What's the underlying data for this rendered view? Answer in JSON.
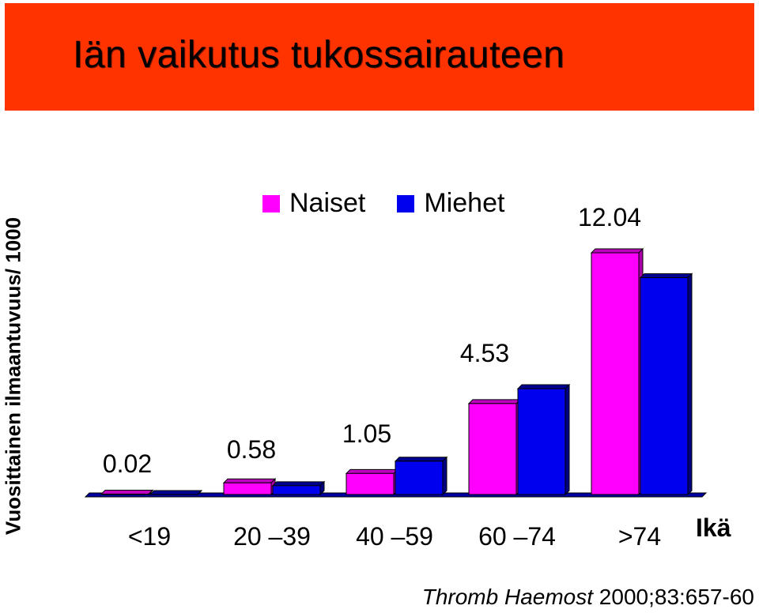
{
  "slide": {
    "title": "Iän vaikutus tukossairauteen",
    "citation_journal": "Thromb Haemost",
    "citation_ref": " 2000;83:657-60"
  },
  "colors": {
    "banner": "#ff3300",
    "naiset": "#ff00ff",
    "miehet": "#0000ee"
  },
  "chart_data": {
    "type": "bar",
    "title": "Iän vaikutus tukossairauteen",
    "ylabel": "Vuosittainen ilmaantuvuus/ 1000",
    "xlabel": "Ikä",
    "categories": [
      "<19",
      "20 –39",
      "40 –59",
      "60 –74",
      ">74"
    ],
    "series": [
      {
        "name": "Naiset",
        "values": [
          0.02,
          0.58,
          1.05,
          4.53,
          12.04
        ]
      },
      {
        "name": "Miehet",
        "values": [
          0.0,
          0.44,
          1.66,
          5.27,
          10.8
        ]
      }
    ],
    "data_labels": [
      "0.02",
      "0.58",
      "1.05",
      "4.53",
      "12.04"
    ],
    "ylim": [
      0,
      12.5
    ],
    "grid": false,
    "legend_position": "top"
  }
}
